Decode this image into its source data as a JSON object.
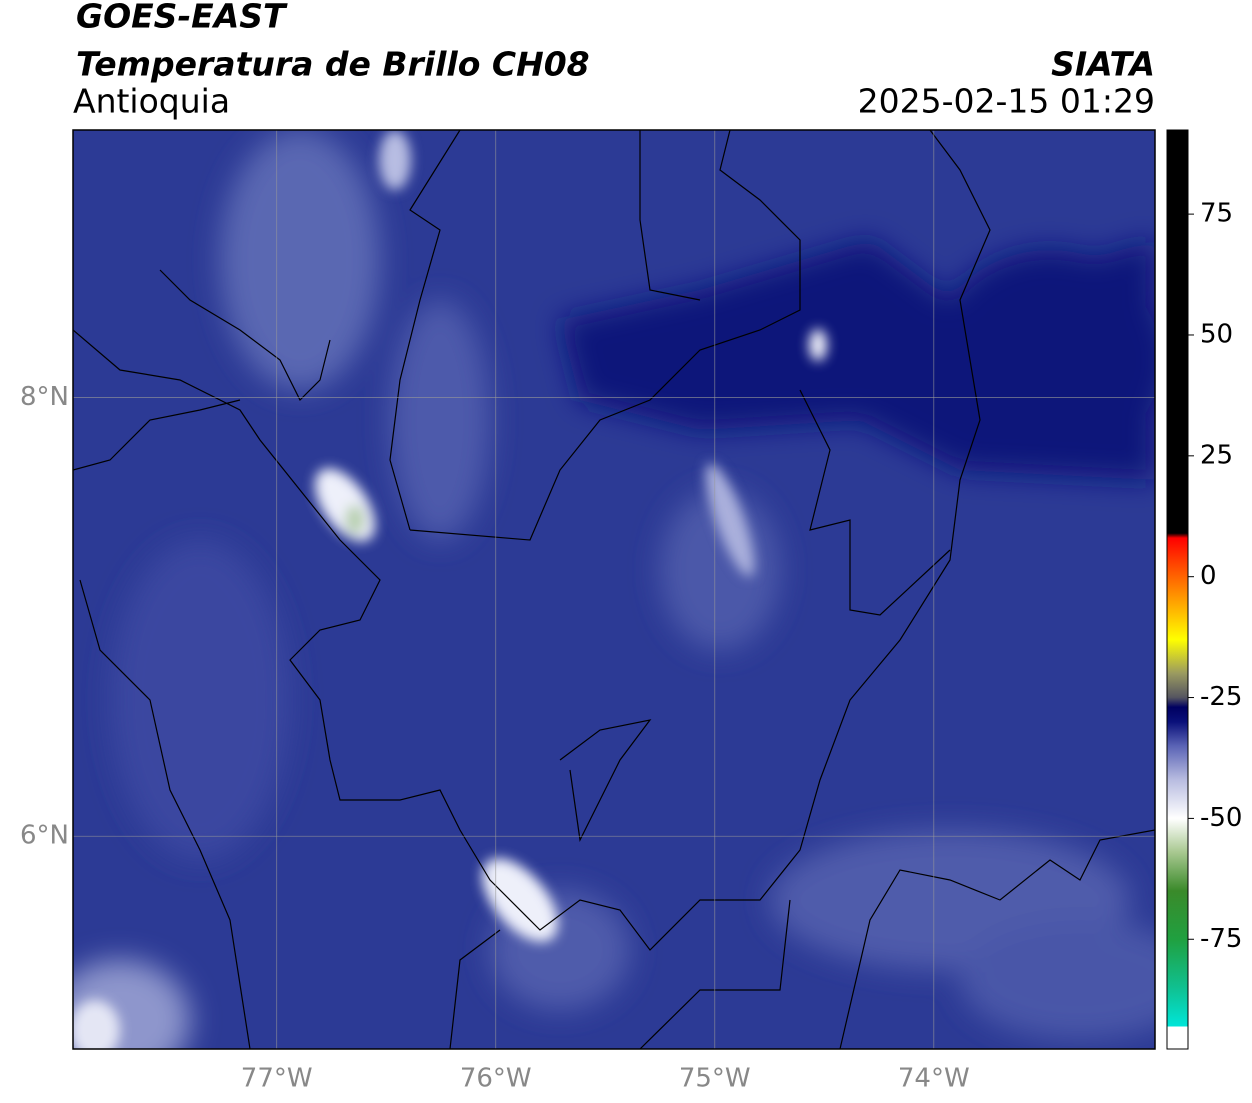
{
  "header": {
    "title": "GOES-EAST",
    "subtitle": "Temperatura de Brillo CH08",
    "region": "Antioquia",
    "source": "SIATA",
    "timestamp": "2025-02-15 01:29"
  },
  "map": {
    "xlim": [
      -77.93,
      -72.99
    ],
    "ylim": [
      5.03,
      9.22
    ],
    "xticks": [
      {
        "value": -77,
        "label": "77°W"
      },
      {
        "value": -76,
        "label": "76°W"
      },
      {
        "value": -75,
        "label": "75°W"
      },
      {
        "value": -74,
        "label": "74°W"
      }
    ],
    "yticks": [
      {
        "value": 6,
        "label": "6°N"
      },
      {
        "value": 8,
        "label": "8°N"
      }
    ],
    "grid": true,
    "colorbar": {
      "clim": [
        -97.7,
        92.4
      ],
      "ticks": [
        -75,
        -50,
        -25,
        0,
        25,
        50,
        75
      ],
      "colormap": [
        [
          -97.7,
          "#ffffff"
        ],
        [
          -93,
          "#ffffff"
        ],
        [
          -93,
          "#00e5d8"
        ],
        [
          -85,
          "#10c090"
        ],
        [
          -75,
          "#20a040"
        ],
        [
          -65,
          "#3a8a2a"
        ],
        [
          -57,
          "#a8c890"
        ],
        [
          -50,
          "#ffffff"
        ],
        [
          -42,
          "#b8bce0"
        ],
        [
          -35,
          "#5a63b5"
        ],
        [
          -30,
          "#0a107a"
        ],
        [
          -27,
          "#000060"
        ],
        [
          -25,
          "#555560"
        ],
        [
          -20,
          "#9a9a60"
        ],
        [
          -13,
          "#ffff00"
        ],
        [
          -5,
          "#ffa000"
        ],
        [
          3,
          "#ff4000"
        ],
        [
          8,
          "#ff0000"
        ],
        [
          9,
          "#000000"
        ],
        [
          92.4,
          "#000000"
        ]
      ]
    }
  }
}
